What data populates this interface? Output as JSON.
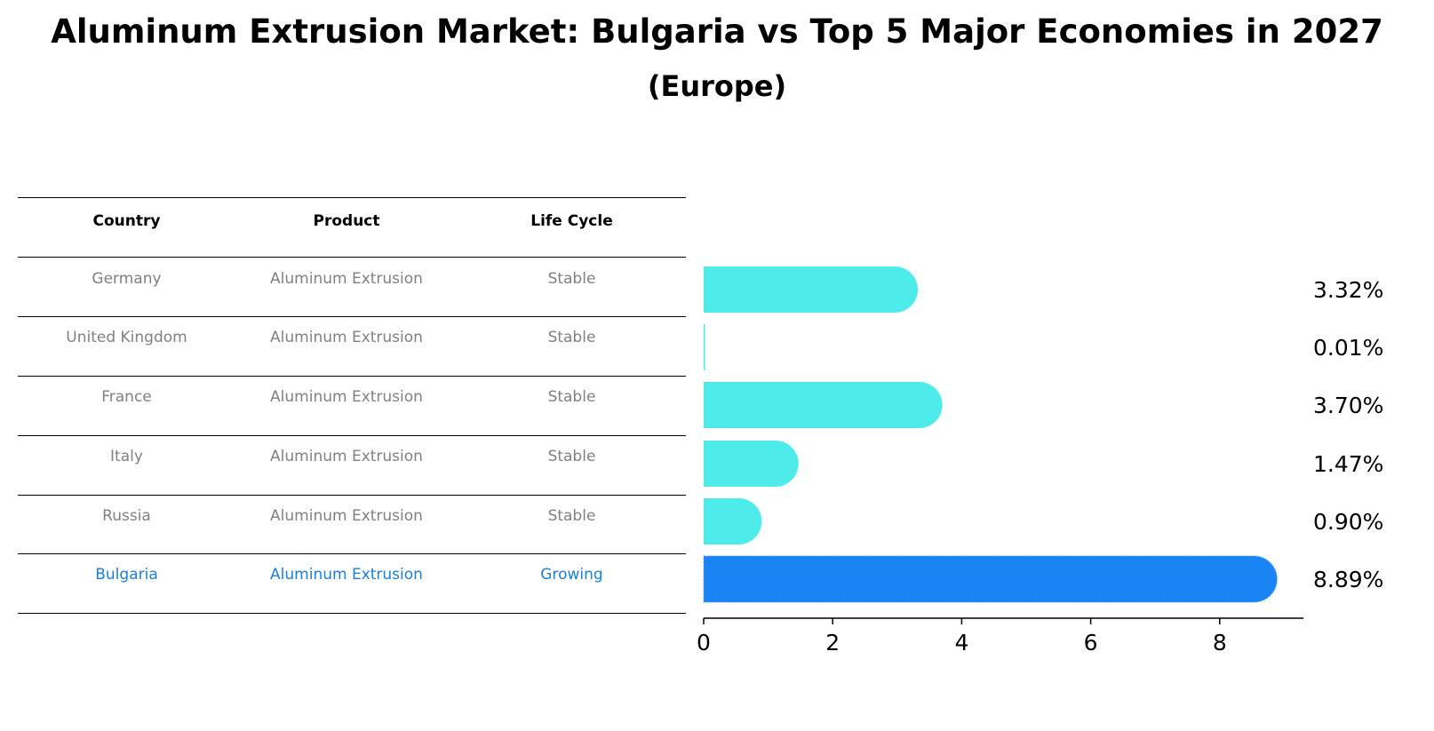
{
  "title": "Aluminum Extrusion Market: Bulgaria vs Top 5 Major Economies in 2027",
  "subtitle": "(Europe)",
  "table": {
    "headers": [
      "Country",
      "Product",
      "Life Cycle"
    ],
    "rows": [
      [
        "Germany",
        "Aluminum Extrusion",
        "Stable"
      ],
      [
        "United Kingdom",
        "Aluminum Extrusion",
        "Stable"
      ],
      [
        "France",
        "Aluminum Extrusion",
        "Stable"
      ],
      [
        "Italy",
        "Aluminum Extrusion",
        "Stable"
      ],
      [
        "Russia",
        "Aluminum Extrusion",
        "Stable"
      ],
      [
        "Bulgaria",
        "Aluminum Extrusion",
        "Growing"
      ]
    ],
    "highlight_row": 5
  },
  "colors": {
    "bar": "#4deceb",
    "highlight_bar": "#1a84f4",
    "highlight_text": "#1a7fd8",
    "row_text": "#808080"
  },
  "chart_data": {
    "type": "bar",
    "orientation": "horizontal",
    "categories": [
      "Germany",
      "United Kingdom",
      "France",
      "Italy",
      "Russia",
      "Bulgaria"
    ],
    "values": [
      3.32,
      0.01,
      3.7,
      1.47,
      0.9,
      8.89
    ],
    "value_labels": [
      "3.32%",
      "0.01%",
      "3.70%",
      "1.47%",
      "0.90%",
      "8.89%"
    ],
    "highlight_index": 5,
    "xlim": [
      0,
      9.3
    ],
    "xticks": [
      0,
      2,
      4,
      6,
      8
    ],
    "xlabel": "",
    "ylabel": ""
  }
}
